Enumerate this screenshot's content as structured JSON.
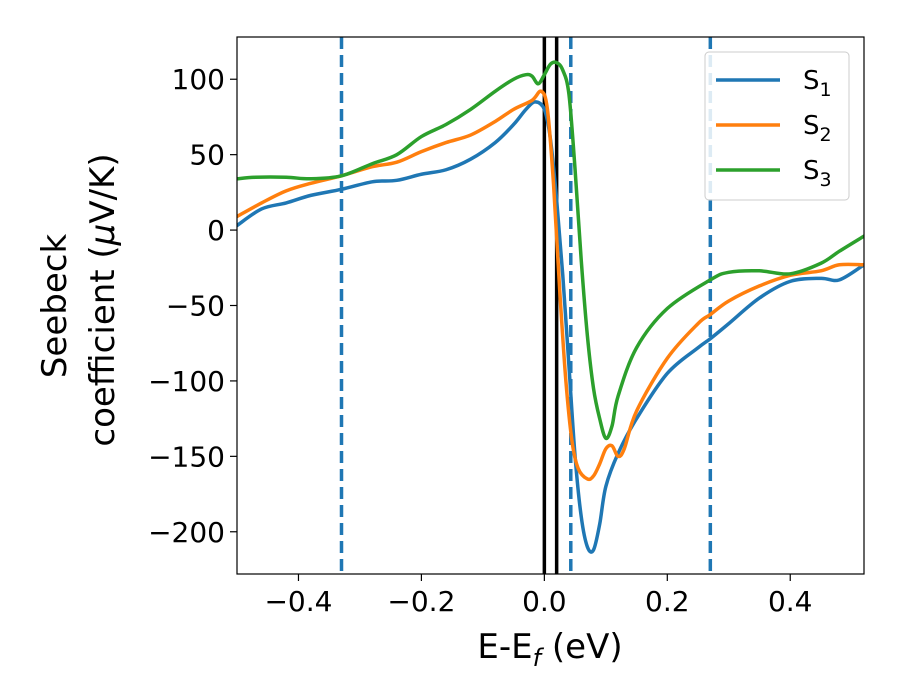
{
  "chart_data": {
    "type": "line",
    "title": "",
    "xlabel": "E-E",
    "xlabel_sub": "f",
    "xlabel_unit": " (eV)",
    "ylabel_line1": "Seebeck",
    "ylabel_line2": "coefficient  (",
    "ylabel_mu": "μ",
    "ylabel_unit": "V/K)",
    "xlim": [
      -0.5,
      0.52
    ],
    "ylim": [
      -228,
      128
    ],
    "xticks": [
      -0.4,
      -0.2,
      0.0,
      0.2,
      0.4
    ],
    "xtick_labels": [
      "−0.4",
      "−0.2",
      "0.0",
      "0.2",
      "0.4"
    ],
    "yticks": [
      -200,
      -150,
      -100,
      -50,
      0,
      50,
      100
    ],
    "ytick_labels": [
      "−200",
      "−150",
      "−100",
      "−50",
      "0",
      "50",
      "100"
    ],
    "grid": false,
    "legend_position": "top-right",
    "vlines": [
      {
        "x": -0.33,
        "style": "dashed",
        "color": "#1f77b4"
      },
      {
        "x": 0.0,
        "style": "solid",
        "color": "#000000"
      },
      {
        "x": 0.02,
        "style": "solid",
        "color": "#000000"
      },
      {
        "x": 0.043,
        "style": "dashed",
        "color": "#1f77b4"
      },
      {
        "x": 0.27,
        "style": "dashed",
        "color": "#1f77b4"
      }
    ],
    "series": [
      {
        "name": "S",
        "sub": "1",
        "color": "#1f77b4",
        "points": [
          [
            -0.5,
            3
          ],
          [
            -0.46,
            14
          ],
          [
            -0.42,
            18
          ],
          [
            -0.38,
            23
          ],
          [
            -0.33,
            27
          ],
          [
            -0.28,
            32
          ],
          [
            -0.24,
            33
          ],
          [
            -0.2,
            37
          ],
          [
            -0.16,
            40
          ],
          [
            -0.12,
            47
          ],
          [
            -0.08,
            58
          ],
          [
            -0.05,
            70
          ],
          [
            -0.03,
            80
          ],
          [
            -0.015,
            85
          ],
          [
            0.0,
            80
          ],
          [
            0.01,
            60
          ],
          [
            0.02,
            20
          ],
          [
            0.03,
            -30
          ],
          [
            0.04,
            -90
          ],
          [
            0.05,
            -150
          ],
          [
            0.06,
            -190
          ],
          [
            0.07,
            -210
          ],
          [
            0.08,
            -212
          ],
          [
            0.09,
            -195
          ],
          [
            0.1,
            -170
          ],
          [
            0.12,
            -148
          ],
          [
            0.15,
            -125
          ],
          [
            0.2,
            -95
          ],
          [
            0.25,
            -78
          ],
          [
            0.27,
            -72
          ],
          [
            0.3,
            -62
          ],
          [
            0.35,
            -45
          ],
          [
            0.4,
            -34
          ],
          [
            0.45,
            -32
          ],
          [
            0.48,
            -33
          ],
          [
            0.52,
            -23
          ]
        ]
      },
      {
        "name": "S",
        "sub": "2",
        "color": "#ff7f0e",
        "points": [
          [
            -0.5,
            9
          ],
          [
            -0.46,
            18
          ],
          [
            -0.42,
            26
          ],
          [
            -0.38,
            31
          ],
          [
            -0.33,
            36
          ],
          [
            -0.28,
            42
          ],
          [
            -0.24,
            45
          ],
          [
            -0.2,
            52
          ],
          [
            -0.16,
            58
          ],
          [
            -0.12,
            63
          ],
          [
            -0.08,
            72
          ],
          [
            -0.05,
            80
          ],
          [
            -0.02,
            86
          ],
          [
            -0.005,
            92
          ],
          [
            0.005,
            80
          ],
          [
            0.015,
            30
          ],
          [
            0.025,
            -40
          ],
          [
            0.035,
            -100
          ],
          [
            0.045,
            -140
          ],
          [
            0.055,
            -158
          ],
          [
            0.07,
            -165
          ],
          [
            0.08,
            -163
          ],
          [
            0.09,
            -155
          ],
          [
            0.1,
            -145
          ],
          [
            0.11,
            -143
          ],
          [
            0.12,
            -150
          ],
          [
            0.13,
            -145
          ],
          [
            0.15,
            -120
          ],
          [
            0.2,
            -85
          ],
          [
            0.25,
            -62
          ],
          [
            0.27,
            -56
          ],
          [
            0.3,
            -47
          ],
          [
            0.35,
            -37
          ],
          [
            0.4,
            -30
          ],
          [
            0.45,
            -27
          ],
          [
            0.48,
            -23
          ],
          [
            0.52,
            -23
          ]
        ]
      },
      {
        "name": "S",
        "sub": "3",
        "color": "#2ca02c",
        "points": [
          [
            -0.5,
            34
          ],
          [
            -0.47,
            35
          ],
          [
            -0.42,
            35
          ],
          [
            -0.38,
            34
          ],
          [
            -0.33,
            36
          ],
          [
            -0.28,
            44
          ],
          [
            -0.24,
            50
          ],
          [
            -0.2,
            62
          ],
          [
            -0.16,
            70
          ],
          [
            -0.12,
            80
          ],
          [
            -0.08,
            92
          ],
          [
            -0.05,
            100
          ],
          [
            -0.03,
            103
          ],
          [
            -0.02,
            102
          ],
          [
            -0.01,
            97
          ],
          [
            0.0,
            103
          ],
          [
            0.01,
            110
          ],
          [
            0.02,
            111
          ],
          [
            0.03,
            106
          ],
          [
            0.04,
            90
          ],
          [
            0.05,
            40
          ],
          [
            0.06,
            -20
          ],
          [
            0.07,
            -70
          ],
          [
            0.08,
            -105
          ],
          [
            0.09,
            -125
          ],
          [
            0.1,
            -138
          ],
          [
            0.11,
            -130
          ],
          [
            0.12,
            -110
          ],
          [
            0.15,
            -78
          ],
          [
            0.2,
            -52
          ],
          [
            0.27,
            -33
          ],
          [
            0.3,
            -28
          ],
          [
            0.35,
            -27
          ],
          [
            0.4,
            -29
          ],
          [
            0.45,
            -22
          ],
          [
            0.48,
            -14
          ],
          [
            0.52,
            -4
          ]
        ]
      }
    ]
  }
}
